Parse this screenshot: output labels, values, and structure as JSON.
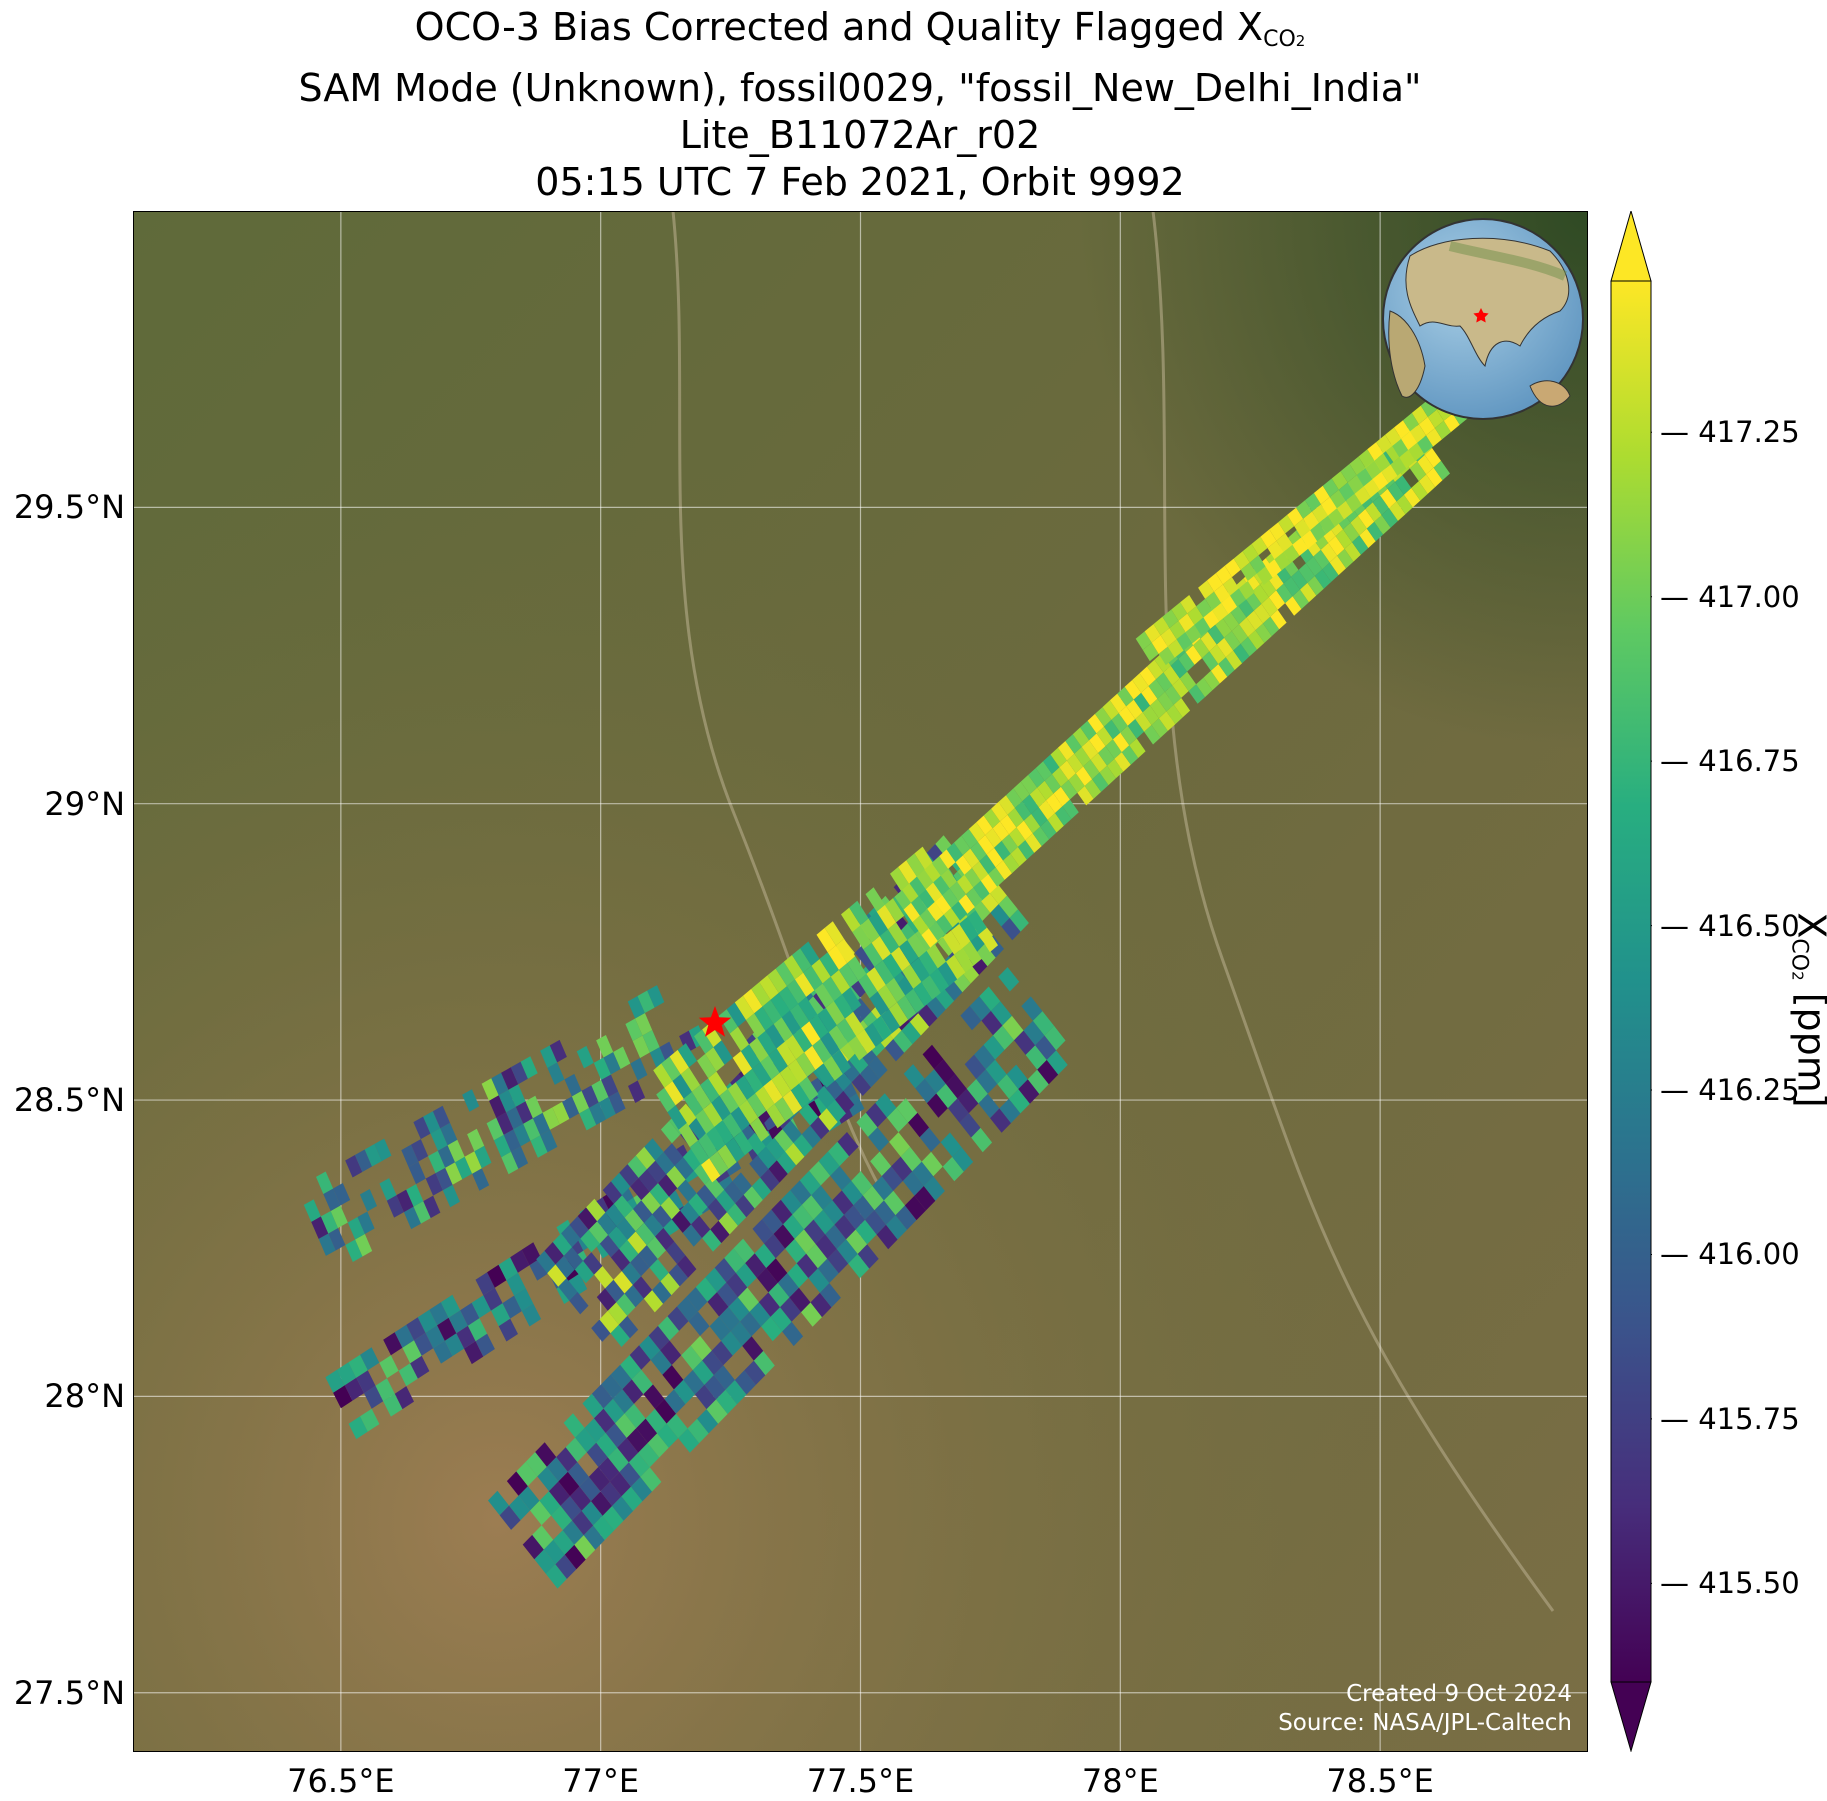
{
  "title": {
    "line1_text": "OCO-3 Bias Corrected and Quality Flagged X",
    "line1_sub": "CO",
    "line1_subsub": "2",
    "line2": "SAM Mode (Unknown), fossil0029, \"fossil_New_Delhi_India\"",
    "line3": "Lite_B11072Ar_r02",
    "line4": "05:15 UTC 7 Feb 2021, Orbit 9992"
  },
  "map": {
    "lon_range": [
      76.1,
      78.9
    ],
    "lat_range": [
      27.4,
      30.0
    ],
    "lat_ticks": [
      {
        "value": 29.5,
        "label": "29.5°N"
      },
      {
        "value": 29.0,
        "label": "29°N"
      },
      {
        "value": 28.5,
        "label": "28.5°N"
      },
      {
        "value": 28.0,
        "label": "28°N"
      },
      {
        "value": 27.5,
        "label": "27.5°N"
      }
    ],
    "lon_ticks": [
      {
        "value": 76.5,
        "label": "76.5°E"
      },
      {
        "value": 77.0,
        "label": "77°E"
      },
      {
        "value": 77.5,
        "label": "77.5°E"
      },
      {
        "value": 78.0,
        "label": "78°E"
      },
      {
        "value": 78.5,
        "label": "78.5°E"
      }
    ],
    "target": {
      "lon": 77.22,
      "lat": 28.63,
      "color": "#ff0000"
    },
    "grid": true
  },
  "colorbar": {
    "label_text": "X",
    "label_sub": "CO",
    "label_subsub": "2",
    "label_unit": " [ppm]",
    "min": 415.35,
    "max": 417.48,
    "ticks": [
      "417.25",
      "417.00",
      "416.75",
      "416.50",
      "416.25",
      "416.00",
      "415.75",
      "415.50"
    ],
    "extend": "both",
    "colormap": "viridis"
  },
  "credits": {
    "created": "Created 9 Oct 2024",
    "source": "Source: NASA/JPL-Caltech"
  },
  "inset_globe": {
    "marker_color": "#ff0000"
  }
}
